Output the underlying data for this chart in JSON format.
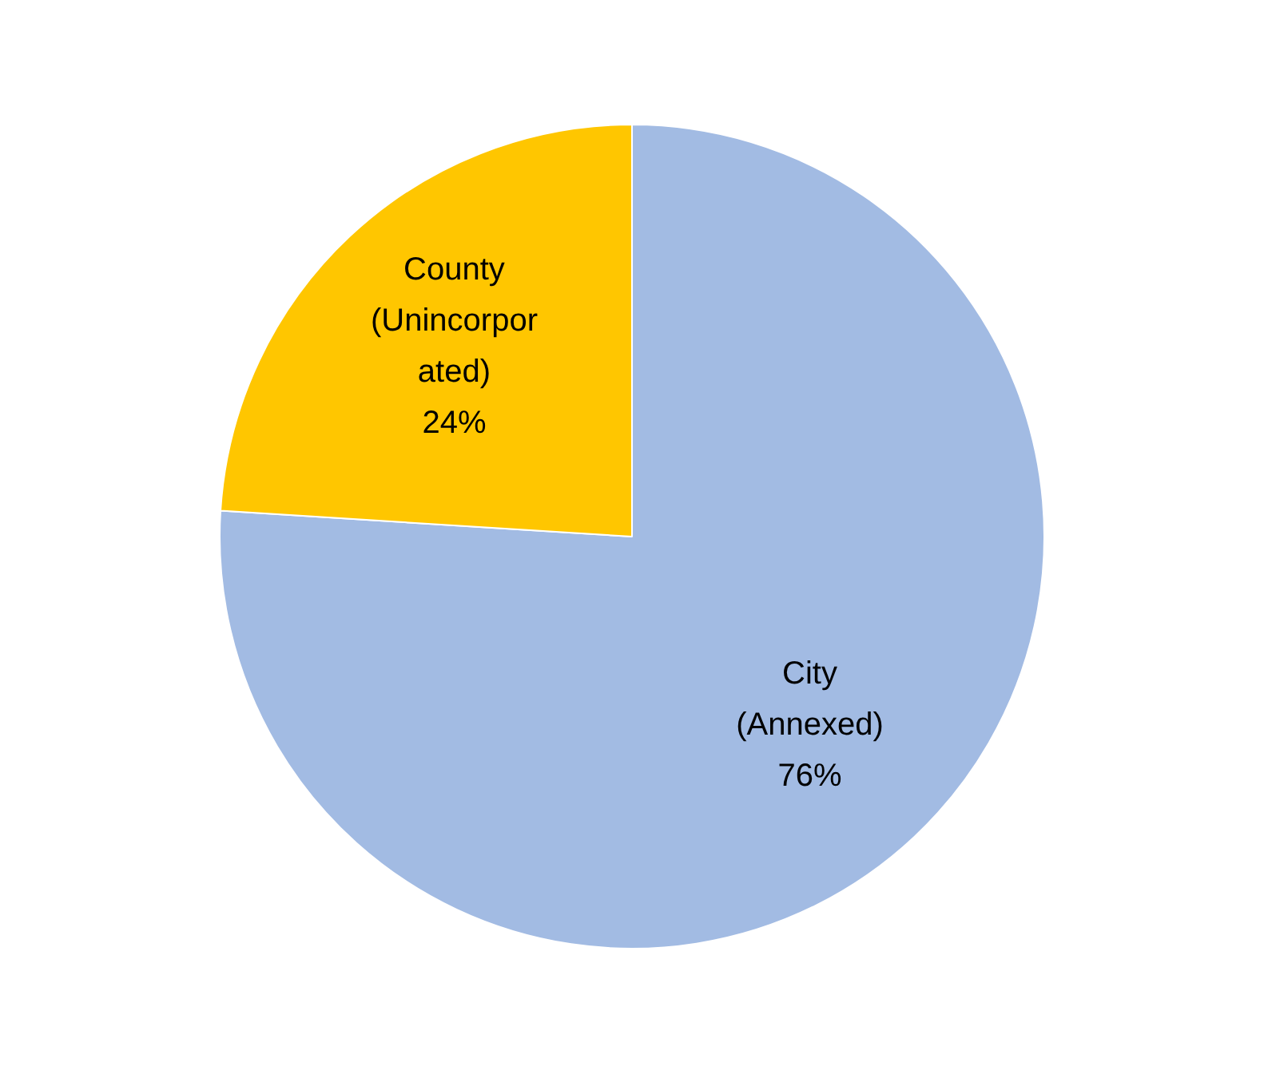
{
  "chart_data": {
    "type": "pie",
    "categories": [
      "City (Annexed)",
      "County (Unincorporated)"
    ],
    "values": [
      76,
      24
    ],
    "colors": [
      "#a2bbe3",
      "#ffc600"
    ],
    "value_labels": [
      "76%",
      "24%"
    ],
    "legend": false
  }
}
